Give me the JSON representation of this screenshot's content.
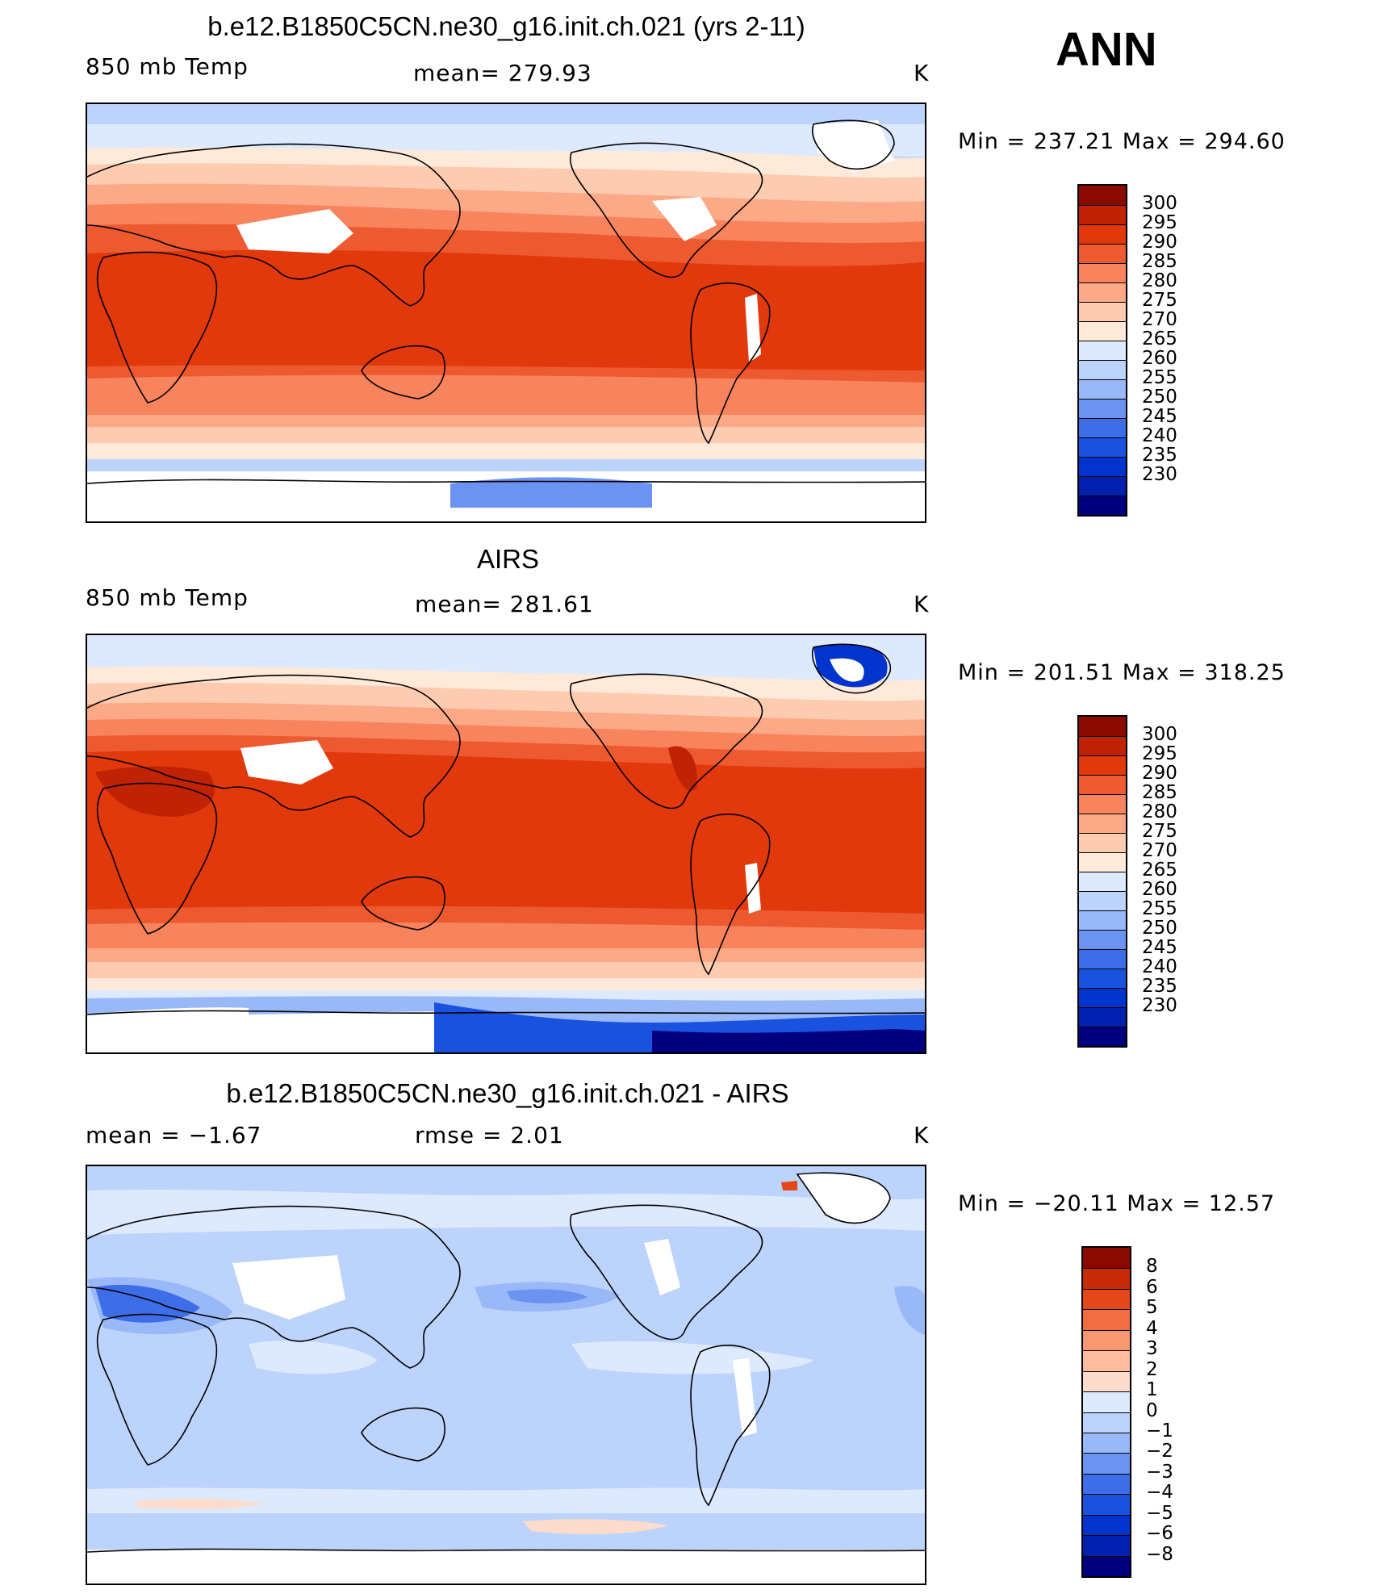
{
  "season": "ANN",
  "colors": {
    "temp": [
      "#00007f",
      "#0021b0",
      "#0034cc",
      "#1a52e0",
      "#3d6ee8",
      "#6b93f2",
      "#98b8f8",
      "#bcd3fb",
      "#dde9fc",
      "#ffe9d8",
      "#fdcbb0",
      "#fca987",
      "#f8845e",
      "#ee5a30",
      "#e1380c",
      "#c02204",
      "#8b0a00"
    ],
    "diff": [
      "#00007f",
      "#0021b0",
      "#0034cc",
      "#1a52e0",
      "#3d6ee8",
      "#6b93f2",
      "#98b8f8",
      "#bcd3fb",
      "#dde9fc",
      "#fddccb",
      "#fcbc9d",
      "#f99770",
      "#f26e42",
      "#e54818",
      "#c72a06",
      "#8b0a00"
    ]
  },
  "panels": [
    {
      "title": "b.e12.B1850C5CN.ne30_g16.init.ch.021 (yrs 2-11)",
      "left_label": "850 mb Temp",
      "center_label": "mean=  279.93",
      "right_label": "K",
      "minmax": "Min  =  237.21  Max  =  294.60",
      "colorbar_labels": [
        "300",
        "295",
        "290",
        "285",
        "280",
        "275",
        "270",
        "265",
        "260",
        "255",
        "250",
        "245",
        "240",
        "235",
        "230"
      ]
    },
    {
      "title": "AIRS",
      "left_label": "850 mb Temp",
      "center_label": "mean=  281.61",
      "right_label": "K",
      "minmax": "Min  =  201.51  Max  =  318.25",
      "colorbar_labels": [
        "300",
        "295",
        "290",
        "285",
        "280",
        "275",
        "270",
        "265",
        "260",
        "255",
        "250",
        "245",
        "240",
        "235",
        "230"
      ]
    },
    {
      "title": "b.e12.B1850C5CN.ne30_g16.init.ch.021 - AIRS",
      "left_label": "mean  =     −1.67",
      "center_label": "rmse  =     2.01",
      "right_label": "K",
      "minmax": "Min  =  −20.11  Max  =    12.57",
      "colorbar_labels": [
        "8",
        "6",
        "5",
        "4",
        "3",
        "2",
        "1",
        "0",
        "−1",
        "−2",
        "−3",
        "−4",
        "−5",
        "−6",
        "−8"
      ]
    }
  ]
}
